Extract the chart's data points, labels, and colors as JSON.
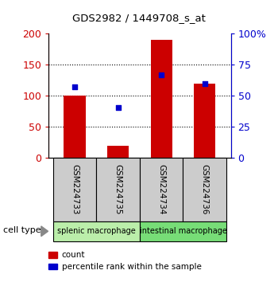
{
  "title": "GDS2982 / 1449708_s_at",
  "samples": [
    "GSM224733",
    "GSM224735",
    "GSM224734",
    "GSM224736"
  ],
  "counts": [
    101,
    20,
    190,
    120
  ],
  "percentile_ranks": [
    57.5,
    40.5,
    67.0,
    60.0
  ],
  "bar_color": "#cc0000",
  "dot_color": "#0000cc",
  "ylim_left": [
    0,
    200
  ],
  "ylim_right": [
    0,
    100
  ],
  "yticks_left": [
    0,
    50,
    100,
    150,
    200
  ],
  "yticks_right": [
    0,
    25,
    50,
    75,
    100
  ],
  "ytick_labels_left": [
    "0",
    "50",
    "100",
    "150",
    "200"
  ],
  "ytick_labels_right": [
    "0",
    "25",
    "50",
    "75",
    "100%"
  ],
  "groups": [
    {
      "label": "splenic macrophage",
      "indices": [
        0,
        1
      ],
      "color": "#bbeeaa"
    },
    {
      "label": "intestinal macrophage",
      "indices": [
        2,
        3
      ],
      "color": "#77dd77"
    }
  ],
  "cell_type_label": "cell type",
  "legend_count_label": "count",
  "legend_percentile_label": "percentile rank within the sample",
  "bar_width": 0.5,
  "grid_color": "#000000",
  "left_axis_color": "#cc0000",
  "right_axis_color": "#0000cc",
  "sample_box_color": "#cccccc",
  "fig_width": 3.5,
  "fig_height": 3.54,
  "dpi": 100
}
